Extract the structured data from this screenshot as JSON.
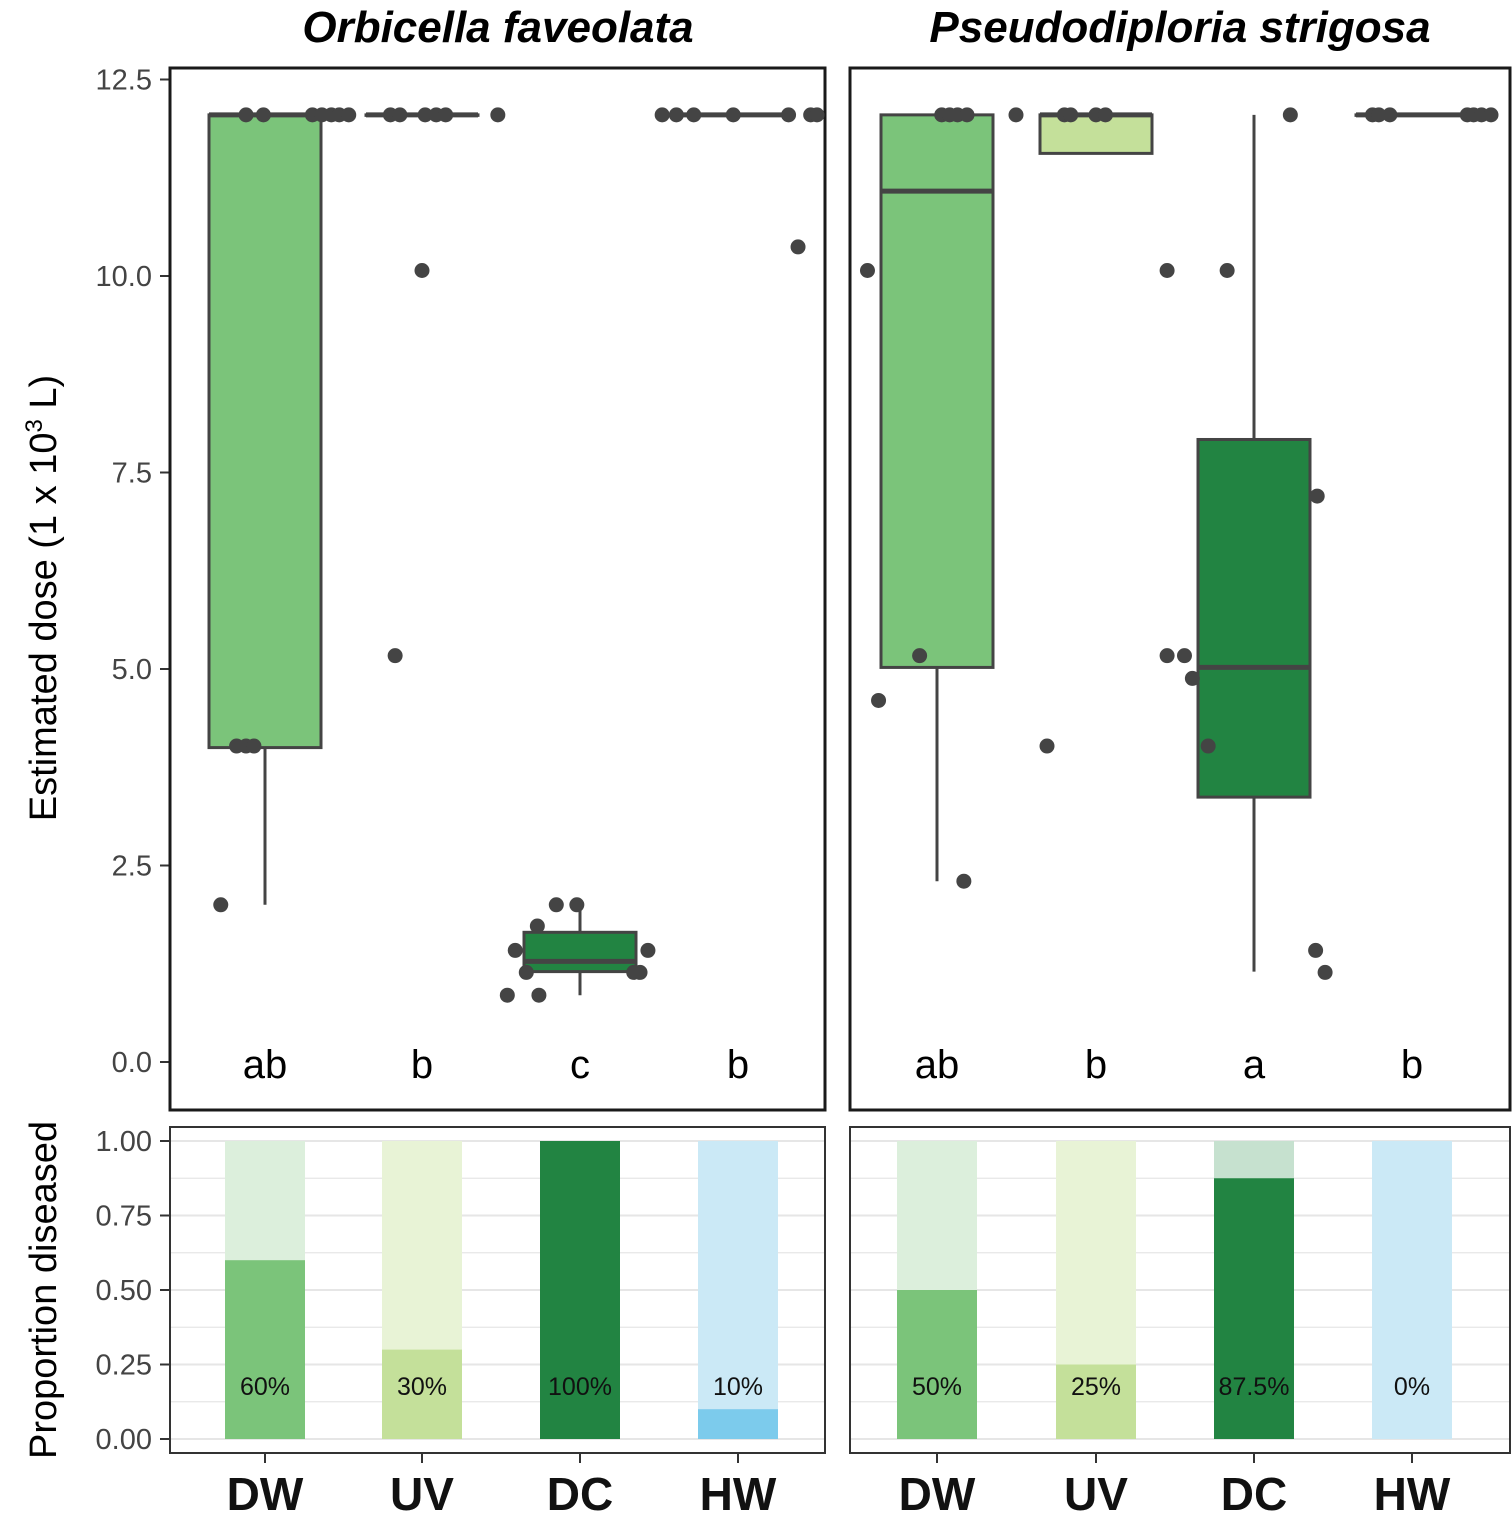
{
  "chart_data": {
    "type": "box",
    "ylabel_main": "Estimated dose (1 x 10",
    "ylabel_sup": "3",
    "ylabel_end": " L)",
    "ylabel_bottom": "Proportion diseased",
    "categories": [
      "DW",
      "UV",
      "DC",
      "HW"
    ],
    "colors": {
      "DW": "#7bc47a",
      "UV": "#c4e09a",
      "DC": "#228442",
      "HW": "#7ccbec"
    },
    "colors_light": {
      "DW": "#dcefdc",
      "UV": "#e8f3d6",
      "DC": "#c6e1cf",
      "HW": "#cbe9f6"
    },
    "main_ylim": [
      0,
      12.5
    ],
    "main_yticks": [
      "0.0",
      "2.5",
      "5.0",
      "7.5",
      "10.0",
      "12.5"
    ],
    "main_ytick_values": [
      0,
      2.5,
      5,
      7.5,
      10,
      12.5
    ],
    "prop_ylim": [
      0,
      1
    ],
    "prop_yticks": [
      "0.00",
      "0.25",
      "0.50",
      "0.75",
      "1.00"
    ],
    "prop_ytick_values": [
      0,
      0.25,
      0.5,
      0.75,
      1
    ],
    "panels": [
      {
        "title": "Orbicella faveolata",
        "boxes": [
          {
            "cat": "DW",
            "min": 2.0,
            "q1": 4.0,
            "median": 12.05,
            "q3": 12.05,
            "max": 12.05
          },
          {
            "cat": "UV",
            "min": 12.05,
            "q1": 12.05,
            "median": 12.05,
            "q3": 12.05,
            "max": 12.05
          },
          {
            "cat": "DC",
            "min": 0.85,
            "q1": 1.15,
            "median": 1.28,
            "q3": 1.65,
            "max": 2.0
          },
          {
            "cat": "HW",
            "min": 12.05,
            "q1": 12.05,
            "median": 12.05,
            "q3": 12.05,
            "max": 12.05
          }
        ],
        "points": [
          {
            "cat": "DW",
            "dx": -0.28,
            "y": 2.0
          },
          {
            "cat": "DW",
            "dx": -0.18,
            "y": 4.02
          },
          {
            "cat": "DW",
            "dx": -0.12,
            "y": 4.02
          },
          {
            "cat": "DW",
            "dx": -0.07,
            "y": 4.02
          },
          {
            "cat": "DW",
            "dx": -0.12,
            "y": 12.05
          },
          {
            "cat": "DW",
            "dx": -0.01,
            "y": 12.05
          },
          {
            "cat": "DW",
            "dx": 0.3,
            "y": 12.05
          },
          {
            "cat": "DW",
            "dx": 0.36,
            "y": 12.05
          },
          {
            "cat": "DW",
            "dx": 0.42,
            "y": 12.05
          },
          {
            "cat": "DW",
            "dx": 0.47,
            "y": 12.05
          },
          {
            "cat": "DW",
            "dx": 0.53,
            "y": 12.05
          },
          {
            "cat": "UV",
            "dx": -0.17,
            "y": 5.17
          },
          {
            "cat": "UV",
            "dx": -0.2,
            "y": 12.05
          },
          {
            "cat": "UV",
            "dx": -0.14,
            "y": 12.05
          },
          {
            "cat": "UV",
            "dx": 0.0,
            "y": 10.07
          },
          {
            "cat": "UV",
            "dx": 0.02,
            "y": 12.05
          },
          {
            "cat": "UV",
            "dx": 0.09,
            "y": 12.05
          },
          {
            "cat": "UV",
            "dx": 0.15,
            "y": 12.05
          },
          {
            "cat": "UV",
            "dx": 0.48,
            "y": 12.05
          },
          {
            "cat": "DC",
            "dx": -0.46,
            "y": 0.85
          },
          {
            "cat": "DC",
            "dx": -0.26,
            "y": 0.85
          },
          {
            "cat": "DC",
            "dx": -0.34,
            "y": 1.14
          },
          {
            "cat": "DC",
            "dx": -0.41,
            "y": 1.42
          },
          {
            "cat": "DC",
            "dx": -0.27,
            "y": 1.73
          },
          {
            "cat": "DC",
            "dx": -0.15,
            "y": 2.0
          },
          {
            "cat": "DC",
            "dx": -0.02,
            "y": 2.0
          },
          {
            "cat": "DC",
            "dx": 0.34,
            "y": 1.14
          },
          {
            "cat": "DC",
            "dx": 0.38,
            "y": 1.14
          },
          {
            "cat": "DC",
            "dx": 0.43,
            "y": 1.42
          },
          {
            "cat": "HW",
            "dx": -0.48,
            "y": 12.05
          },
          {
            "cat": "HW",
            "dx": -0.39,
            "y": 12.05
          },
          {
            "cat": "HW",
            "dx": -0.28,
            "y": 12.05
          },
          {
            "cat": "HW",
            "dx": -0.03,
            "y": 12.05
          },
          {
            "cat": "HW",
            "dx": 0.32,
            "y": 12.05
          },
          {
            "cat": "HW",
            "dx": 0.38,
            "y": 10.37
          },
          {
            "cat": "HW",
            "dx": 0.46,
            "y": 12.05
          },
          {
            "cat": "HW",
            "dx": 0.5,
            "y": 12.05
          }
        ],
        "letters": [
          "ab",
          "b",
          "c",
          "b"
        ],
        "proportions": [
          0.6,
          0.3,
          1.0,
          0.1
        ],
        "prop_labels": [
          "60%",
          "30%",
          "100%",
          "10%"
        ]
      },
      {
        "title": "Pseudodiploria strigosa",
        "boxes": [
          {
            "cat": "DW",
            "min": 2.3,
            "q1": 5.02,
            "median": 11.08,
            "q3": 12.05,
            "max": 12.05
          },
          {
            "cat": "UV",
            "min": 11.56,
            "q1": 11.56,
            "median": 12.05,
            "q3": 12.05,
            "max": 12.05
          },
          {
            "cat": "DC",
            "min": 1.15,
            "q1": 3.37,
            "median": 5.02,
            "q3": 7.92,
            "max": 12.05
          },
          {
            "cat": "HW",
            "min": 12.05,
            "q1": 12.05,
            "median": 12.05,
            "q3": 12.05,
            "max": 12.05
          }
        ],
        "points": [
          {
            "cat": "DW",
            "dx": -0.44,
            "y": 10.07
          },
          {
            "cat": "DW",
            "dx": -0.37,
            "y": 4.6
          },
          {
            "cat": "DW",
            "dx": -0.11,
            "y": 5.17
          },
          {
            "cat": "DW",
            "dx": 0.03,
            "y": 12.05
          },
          {
            "cat": "DW",
            "dx": 0.08,
            "y": 12.05
          },
          {
            "cat": "DW",
            "dx": 0.13,
            "y": 12.05
          },
          {
            "cat": "DW",
            "dx": 0.17,
            "y": 2.3
          },
          {
            "cat": "DW",
            "dx": 0.19,
            "y": 12.05
          },
          {
            "cat": "DW",
            "dx": 0.5,
            "y": 12.05
          },
          {
            "cat": "UV",
            "dx": -0.31,
            "y": 4.02
          },
          {
            "cat": "UV",
            "dx": -0.2,
            "y": 12.05
          },
          {
            "cat": "UV",
            "dx": -0.16,
            "y": 12.05
          },
          {
            "cat": "UV",
            "dx": 0.0,
            "y": 12.05
          },
          {
            "cat": "UV",
            "dx": 0.06,
            "y": 12.05
          },
          {
            "cat": "UV",
            "dx": 0.45,
            "y": 10.07
          },
          {
            "cat": "DC",
            "dx": -0.55,
            "y": 5.17
          },
          {
            "cat": "DC",
            "dx": -0.44,
            "y": 5.17
          },
          {
            "cat": "DC",
            "dx": -0.39,
            "y": 4.88
          },
          {
            "cat": "DC",
            "dx": -0.29,
            "y": 4.02
          },
          {
            "cat": "DC",
            "dx": -0.17,
            "y": 10.07
          },
          {
            "cat": "DC",
            "dx": 0.23,
            "y": 12.05
          },
          {
            "cat": "DC",
            "dx": 0.39,
            "y": 1.42
          },
          {
            "cat": "DC",
            "dx": 0.4,
            "y": 7.2
          },
          {
            "cat": "DC",
            "dx": 0.45,
            "y": 1.14
          },
          {
            "cat": "HW",
            "dx": -0.25,
            "y": 12.05
          },
          {
            "cat": "HW",
            "dx": -0.14,
            "y": 12.05
          },
          {
            "cat": "HW",
            "dx": -0.21,
            "y": 12.05
          },
          {
            "cat": "HW",
            "dx": 0.35,
            "y": 12.05
          },
          {
            "cat": "HW",
            "dx": 0.39,
            "y": 12.05
          },
          {
            "cat": "HW",
            "dx": 0.44,
            "y": 12.05
          },
          {
            "cat": "HW",
            "dx": 0.5,
            "y": 12.05
          }
        ],
        "letters": [
          "ab",
          "b",
          "a",
          "b"
        ],
        "proportions": [
          0.5,
          0.25,
          0.875,
          0.0
        ],
        "prop_labels": [
          "50%",
          "25%",
          "87.5%",
          "0%"
        ]
      }
    ]
  }
}
